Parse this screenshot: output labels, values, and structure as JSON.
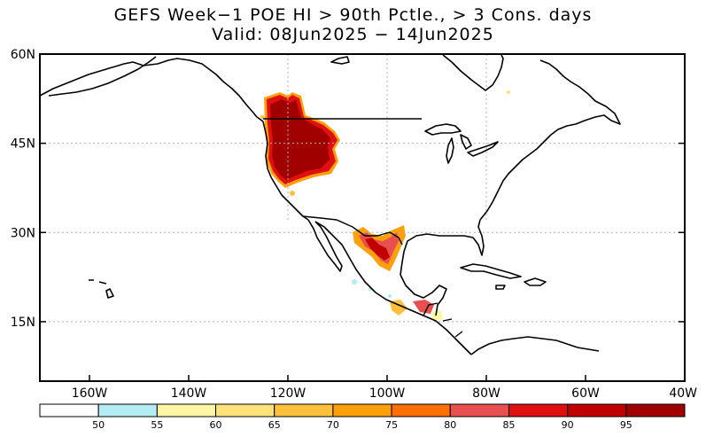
{
  "title": {
    "line1": "GEFS Week−1 POE HI > 90th Pctle., > 3 Cons. days",
    "line2": "Valid: 08Jun2025 − 14Jun2025"
  },
  "map": {
    "lon_range": [
      -170,
      -40
    ],
    "lat_range": [
      5,
      60
    ],
    "lat_ticks": [
      {
        "lat": 60,
        "label": "60N"
      },
      {
        "lat": 45,
        "label": "45N"
      },
      {
        "lat": 30,
        "label": "30N"
      },
      {
        "lat": 15,
        "label": "15N"
      }
    ],
    "lon_ticks": [
      {
        "lon": -160,
        "label": "160W"
      },
      {
        "lon": -140,
        "label": "140W"
      },
      {
        "lon": -120,
        "label": "120W"
      },
      {
        "lon": -100,
        "label": "100W"
      },
      {
        "lon": -80,
        "label": "80W"
      },
      {
        "lon": -60,
        "label": "60W"
      },
      {
        "lon": -40,
        "label": "40W"
      }
    ]
  },
  "colorbar": {
    "colors": [
      "#ffffff",
      "#b4ecf4",
      "#fff6a6",
      "#ffe27a",
      "#ffc03c",
      "#ffa00a",
      "#ff7000",
      "#e85050",
      "#e01010",
      "#c00000",
      "#a00000"
    ],
    "labels": [
      "50",
      "55",
      "60",
      "65",
      "70",
      "75",
      "80",
      "85",
      "90",
      "95"
    ]
  }
}
